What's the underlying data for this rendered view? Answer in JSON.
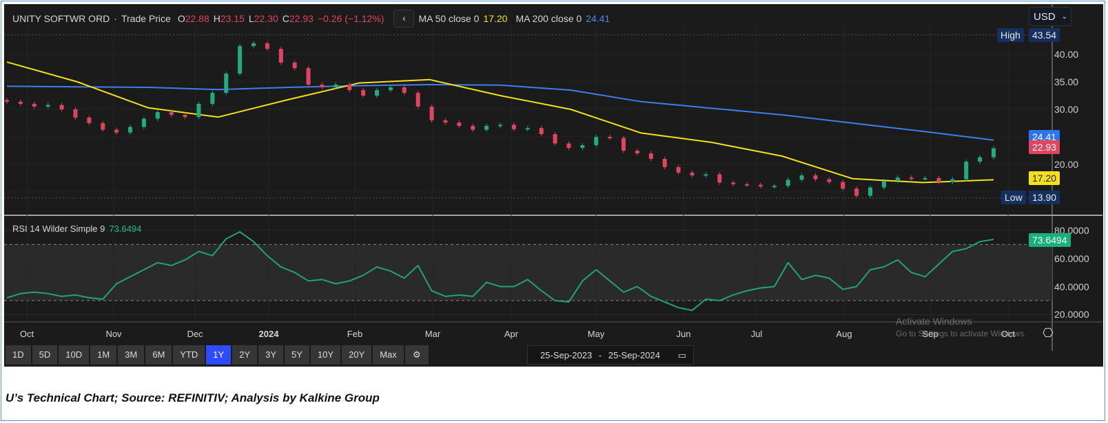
{
  "header": {
    "instrument": "UNITY SOFTWR ORD",
    "separator": "·",
    "field": "Trade Price",
    "open_label": "O",
    "open": "22.88",
    "high_label": "H",
    "high": "23.15",
    "low_label": "L",
    "low": "22.30",
    "close_label": "C",
    "close": "22.93",
    "change": "−0.26 (−1.12%)",
    "collapse_icon": "‹",
    "ma50_label": "MA 50 close 0",
    "ma50_value": "17.20",
    "ma200_label": "MA 200 close 0",
    "ma200_value": "24.41"
  },
  "currency": {
    "value": "USD",
    "chevron": "⌄"
  },
  "price_axis": {
    "ticks": [
      "40.00",
      "35.00",
      "30.00",
      "20.00"
    ],
    "high_label": "High",
    "high_value": "43.54",
    "low_label": "Low",
    "low_value": "13.90",
    "ma200_badge": "24.41",
    "close_badge": "22.93",
    "ma50_badge": "17.20"
  },
  "rsi": {
    "label": "RSI 14 Wilder Simple 9",
    "value": "73.6494",
    "ticks": [
      "80.0000",
      "60.0000",
      "40.0000",
      "20.0000"
    ],
    "badge": "73.6494"
  },
  "x_axis": {
    "months": [
      "Oct",
      "Nov",
      "Dec",
      "2024",
      "Feb",
      "Mar",
      "Apr",
      "May",
      "Jun",
      "Jul",
      "Aug",
      "Sep",
      "Oct"
    ]
  },
  "toolbar": {
    "ranges": [
      "1D",
      "5D",
      "10D",
      "1M",
      "3M",
      "6M",
      "YTD",
      "1Y",
      "2Y",
      "3Y",
      "5Y",
      "10Y",
      "20Y",
      "Max"
    ],
    "active": "1Y",
    "settings_icon": "⚙",
    "date_from": "25-Sep-2023",
    "date_sep": "-",
    "date_to": "25-Sep-2024",
    "calendar_icon": "▭"
  },
  "chart_settings_icon": "⎔",
  "watermark": {
    "line1": "Activate Windows",
    "line2": "Go to Settings to activate Windows."
  },
  "caption": "U’s Technical Chart; Source: REFINITIV; Analysis by Kalkine Group",
  "colors": {
    "up": "#22ab82",
    "down": "#e0455f",
    "ma50": "#f5e11b",
    "ma200": "#3d7ff0",
    "rsi": "#1fa57a",
    "background": "#1b1b1b"
  },
  "chart_data": {
    "type": "candlestick",
    "date_range": [
      "2023-09-25",
      "2024-09-25"
    ],
    "ylim": [
      12.5,
      44.5
    ],
    "rsi_ylim": [
      15,
      85
    ],
    "rsi_bands": [
      30,
      70
    ],
    "price_ticks": [
      40,
      35,
      30,
      20
    ],
    "rsi_ticks": [
      80,
      60,
      40,
      20
    ],
    "high": 43.54,
    "low": 13.9,
    "close": [
      31.4,
      31.0,
      30.5,
      30.8,
      30.0,
      28.5,
      27.5,
      26.3,
      25.8,
      26.8,
      28.3,
      29.5,
      29.0,
      28.6,
      31.0,
      33.0,
      36.5,
      41.5,
      42.0,
      41.0,
      38.5,
      37.5,
      34.5,
      34.0,
      34.5,
      33.5,
      32.5,
      33.5,
      34.0,
      33.0,
      30.5,
      28.0,
      27.6,
      27.0,
      26.3,
      27.0,
      27.2,
      26.4,
      26.6,
      25.5,
      23.8,
      23.0,
      23.5,
      25.0,
      24.8,
      22.5,
      22.0,
      21.0,
      19.5,
      18.5,
      18.0,
      18.2,
      16.7,
      16.4,
      16.3,
      16.0,
      16.1,
      17.2,
      18.0,
      17.3,
      16.8,
      15.6,
      14.3,
      15.8,
      17.0,
      17.6,
      17.5,
      17.5,
      16.8,
      17.3,
      20.5,
      21.3,
      22.93
    ],
    "ma200": [
      34.2,
      34.1,
      34.0,
      33.6,
      34.0,
      34.3,
      34.5,
      34.4,
      33.5,
      31.4,
      30.2,
      29.0,
      27.5,
      26.0,
      24.41
    ],
    "ma50": [
      38.6,
      35.0,
      30.3,
      28.6,
      31.8,
      34.8,
      35.4,
      32.5,
      30.0,
      25.7,
      24.0,
      21.5,
      17.4,
      16.7,
      17.2
    ],
    "rsi_series": [
      32,
      35,
      36,
      35,
      33,
      34,
      32,
      31,
      42,
      47,
      52,
      57,
      55,
      59,
      65,
      62,
      74,
      79,
      72,
      62,
      54,
      50,
      44,
      45,
      42,
      44,
      48,
      54,
      51,
      46,
      55,
      37,
      33,
      34,
      33,
      43,
      40,
      40,
      45,
      37,
      30,
      29,
      44,
      52,
      44,
      36,
      40,
      33,
      29,
      25,
      23,
      31,
      30,
      34,
      37,
      39,
      40,
      57,
      45,
      48,
      46,
      38,
      40,
      52,
      54,
      59,
      50,
      47,
      56,
      65,
      67,
      72,
      73.65
    ]
  }
}
